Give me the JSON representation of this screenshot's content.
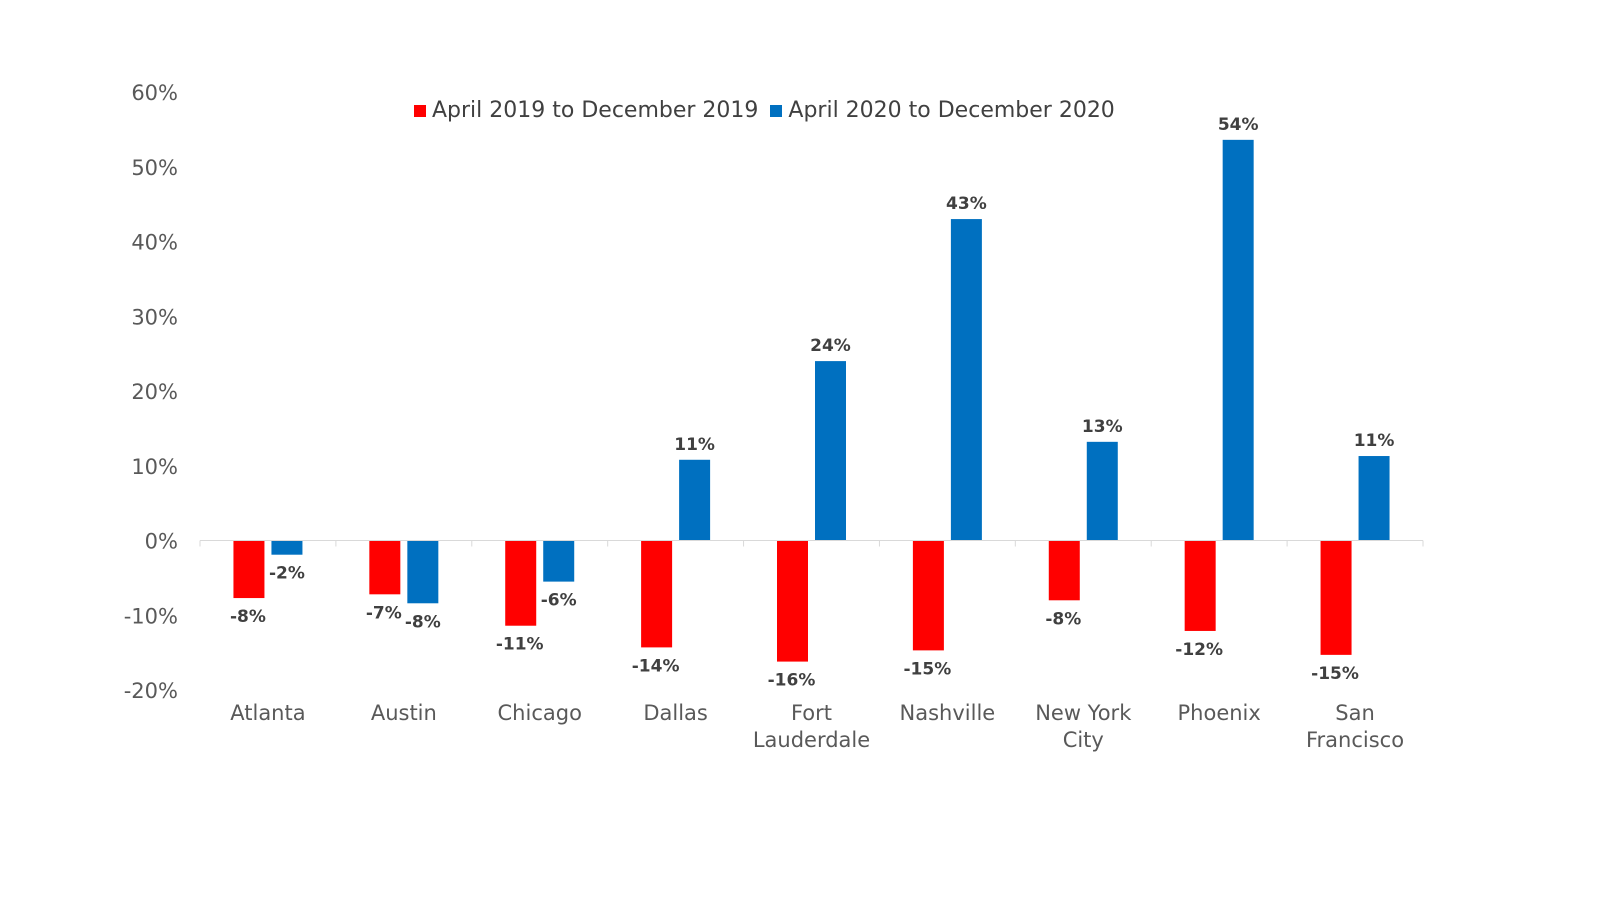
{
  "chart_data": {
    "type": "bar",
    "categories": [
      [
        "Atlanta"
      ],
      [
        "Austin"
      ],
      [
        "Chicago"
      ],
      [
        "Dallas"
      ],
      [
        "Fort",
        "Lauderdale"
      ],
      [
        "Nashville"
      ],
      [
        "New York",
        "City"
      ],
      [
        "Phoenix"
      ],
      [
        "San",
        "Francisco"
      ]
    ],
    "series": [
      {
        "name": "April 2019 to December 2019",
        "color": "#ff0000",
        "values": [
          -7.7,
          -7.2,
          -11.4,
          -14.3,
          -16.2,
          -14.7,
          -8.0,
          -12.1,
          -15.3
        ],
        "labels": [
          "-8%",
          "-7%",
          "-11%",
          "-14%",
          "-16%",
          "-15%",
          "-8%",
          "-12%",
          "-15%"
        ]
      },
      {
        "name": "April 2020 to December 2020",
        "color": "#0070c0",
        "values": [
          -1.9,
          -8.4,
          -5.5,
          10.8,
          24.0,
          43.0,
          13.2,
          53.6,
          11.3
        ],
        "labels": [
          "-2%",
          "-8%",
          "-6%",
          "11%",
          "24%",
          "43%",
          "13%",
          "54%",
          "11%"
        ]
      }
    ],
    "ylim": [
      -20,
      60
    ],
    "yticks": [
      -20,
      -10,
      0,
      10,
      20,
      30,
      40,
      50,
      60
    ],
    "ytick_labels": [
      "-20%",
      "-10%",
      "0%",
      "10%",
      "20%",
      "30%",
      "40%",
      "50%",
      "60%"
    ],
    "legend": "top-center",
    "grid": false
  }
}
